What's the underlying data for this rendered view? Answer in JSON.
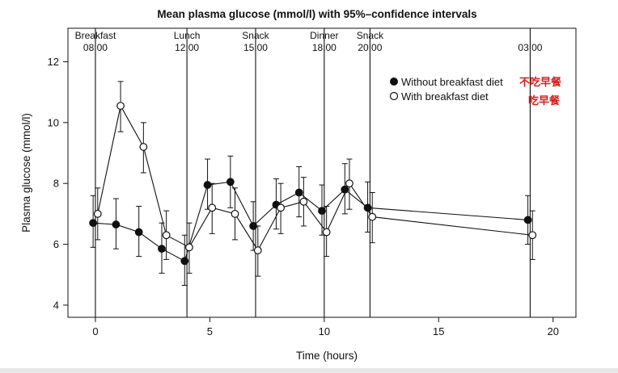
{
  "chart_data": {
    "type": "line",
    "title": "Mean plasma glucose (mmol/l) with 95%–confidence intervals",
    "xlabel": "Time (hours)",
    "ylabel": "Plasma glucose (mmol/l)",
    "xlim": [
      -1.2,
      21
    ],
    "ylim": [
      3.6,
      13.1
    ],
    "xticks": [
      0,
      5,
      10,
      15,
      20
    ],
    "yticks": [
      4,
      6,
      8,
      10,
      12
    ],
    "grid": false,
    "legend_position": "top-right",
    "meals": [
      {
        "name": "Breakfast",
        "time": "08:00",
        "x": 0
      },
      {
        "name": "Lunch",
        "time": "12:00",
        "x": 4
      },
      {
        "name": "Snack",
        "time": "15:00",
        "x": 7
      },
      {
        "name": "Dinner",
        "time": "18:00",
        "x": 10
      },
      {
        "name": "Snack",
        "time": "20:00",
        "x": 12
      },
      {
        "name": "",
        "time": "03:00",
        "x": 19
      }
    ],
    "series": [
      {
        "name": "Without breakfast diet",
        "marker": "filled",
        "color": "#111111",
        "points": [
          {
            "x": -0.1,
            "y": 6.7,
            "lo": 5.9,
            "hi": 7.6
          },
          {
            "x": 0.9,
            "y": 6.65,
            "lo": 5.85,
            "hi": 7.5
          },
          {
            "x": 1.9,
            "y": 6.4,
            "lo": 5.6,
            "hi": 7.25
          },
          {
            "x": 2.9,
            "y": 5.85,
            "lo": 5.05,
            "hi": 6.7
          },
          {
            "x": 3.9,
            "y": 5.45,
            "lo": 4.65,
            "hi": 6.3
          },
          {
            "x": 4.9,
            "y": 7.95,
            "lo": 7.15,
            "hi": 8.8
          },
          {
            "x": 5.9,
            "y": 8.05,
            "lo": 7.2,
            "hi": 8.9
          },
          {
            "x": 6.9,
            "y": 6.6,
            "lo": 5.8,
            "hi": 7.4
          },
          {
            "x": 7.9,
            "y": 7.3,
            "lo": 6.5,
            "hi": 8.15
          },
          {
            "x": 8.9,
            "y": 7.7,
            "lo": 6.9,
            "hi": 8.55
          },
          {
            "x": 9.9,
            "y": 7.1,
            "lo": 6.3,
            "hi": 7.95
          },
          {
            "x": 10.9,
            "y": 7.8,
            "lo": 7.0,
            "hi": 8.65
          },
          {
            "x": 11.9,
            "y": 7.2,
            "lo": 6.4,
            "hi": 8.05
          },
          {
            "x": 18.9,
            "y": 6.8,
            "lo": 6.0,
            "hi": 7.6
          }
        ]
      },
      {
        "name": "With breakfast diet",
        "marker": "open",
        "color": "#111111",
        "points": [
          {
            "x": 0.1,
            "y": 7.0,
            "lo": 6.15,
            "hi": 7.85
          },
          {
            "x": 1.1,
            "y": 10.55,
            "lo": 9.7,
            "hi": 11.35
          },
          {
            "x": 2.1,
            "y": 9.2,
            "lo": 8.35,
            "hi": 10.0
          },
          {
            "x": 3.1,
            "y": 6.3,
            "lo": 5.5,
            "hi": 7.1
          },
          {
            "x": 4.1,
            "y": 5.9,
            "lo": 5.05,
            "hi": 6.7
          },
          {
            "x": 5.1,
            "y": 7.2,
            "lo": 6.35,
            "hi": 8.0
          },
          {
            "x": 6.1,
            "y": 7.0,
            "lo": 6.15,
            "hi": 7.85
          },
          {
            "x": 7.1,
            "y": 5.8,
            "lo": 4.95,
            "hi": 6.6
          },
          {
            "x": 8.1,
            "y": 7.2,
            "lo": 6.35,
            "hi": 8.0
          },
          {
            "x": 9.1,
            "y": 7.4,
            "lo": 6.6,
            "hi": 8.2
          },
          {
            "x": 10.1,
            "y": 6.4,
            "lo": 5.6,
            "hi": 7.25
          },
          {
            "x": 11.1,
            "y": 8.0,
            "lo": 7.15,
            "hi": 8.8
          },
          {
            "x": 12.1,
            "y": 6.9,
            "lo": 6.05,
            "hi": 7.7
          },
          {
            "x": 19.1,
            "y": 6.3,
            "lo": 5.5,
            "hi": 7.1
          }
        ]
      }
    ],
    "annotations": [
      {
        "text": "不吃早餐",
        "color": "#d81e1e",
        "refers_to": "Without breakfast diet"
      },
      {
        "text": "吃早餐",
        "color": "#d81e1e",
        "refers_to": "With breakfast diet"
      }
    ]
  }
}
